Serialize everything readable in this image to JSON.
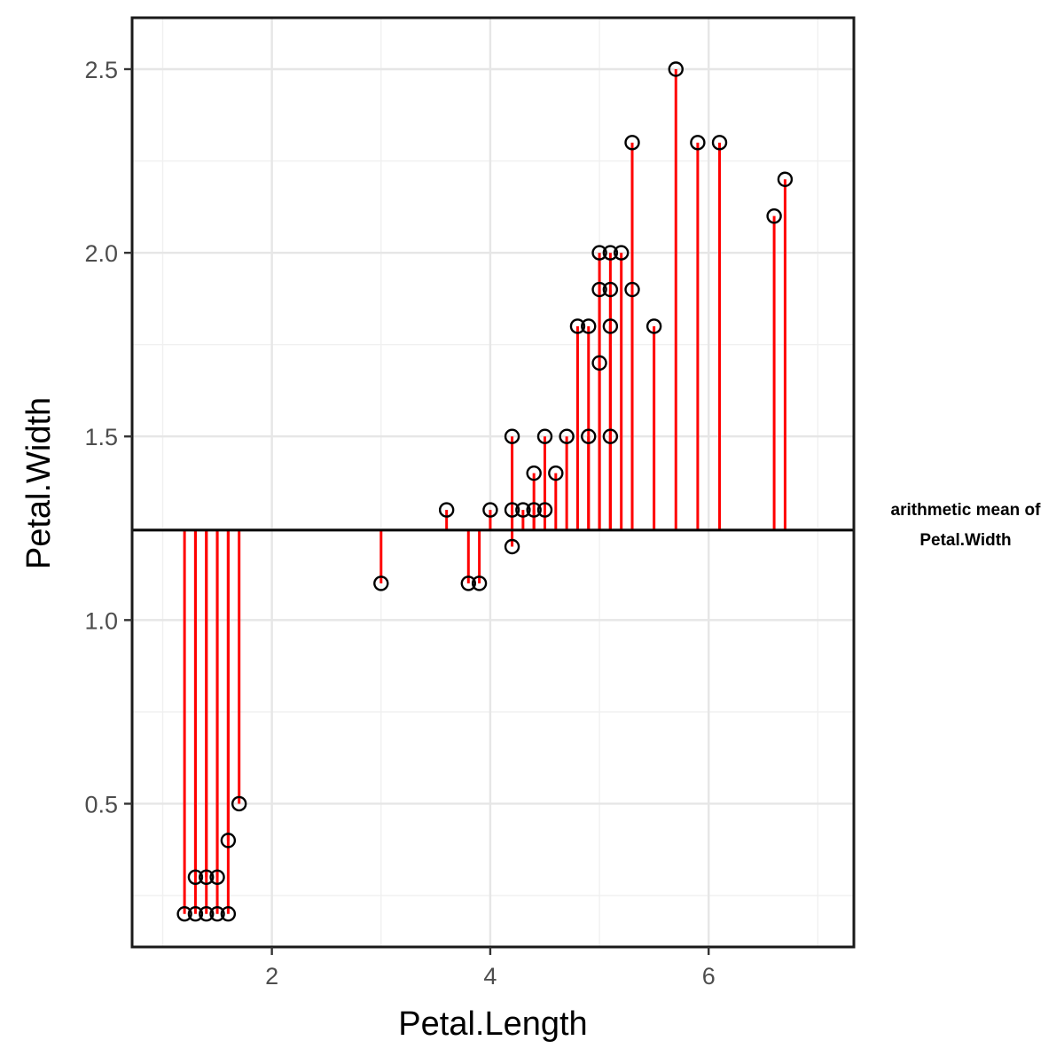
{
  "chart_data": {
    "type": "scatter",
    "xlabel": "Petal.Length",
    "ylabel": "Petal.Width",
    "xlim": [
      0.72,
      7.33
    ],
    "ylim": [
      0.11,
      2.64
    ],
    "x_ticks": [
      2,
      4,
      6
    ],
    "x_tick_labels": [
      "2",
      "4",
      "6"
    ],
    "y_ticks": [
      0.5,
      1.0,
      1.5,
      2.0,
      2.5
    ],
    "y_tick_labels": [
      "0.5",
      "1.0",
      "1.5",
      "2.0",
      "2.5"
    ],
    "grid": true,
    "mean_line": {
      "value": 1.245,
      "label_line1": "arithmetic mean of",
      "label_line2": "Petal.Width"
    },
    "segment_color": "#ff0000",
    "point_color": "#000000",
    "points": [
      [
        1.2,
        0.2
      ],
      [
        1.3,
        0.2
      ],
      [
        1.3,
        0.3
      ],
      [
        1.4,
        0.2
      ],
      [
        1.4,
        0.3
      ],
      [
        1.5,
        0.2
      ],
      [
        1.5,
        0.3
      ],
      [
        1.6,
        0.2
      ],
      [
        1.6,
        0.4
      ],
      [
        1.7,
        0.5
      ],
      [
        3.0,
        1.1
      ],
      [
        3.6,
        1.3
      ],
      [
        3.8,
        1.1
      ],
      [
        3.9,
        1.1
      ],
      [
        4.0,
        1.3
      ],
      [
        4.2,
        1.3
      ],
      [
        4.2,
        1.5
      ],
      [
        4.2,
        1.2
      ],
      [
        4.3,
        1.3
      ],
      [
        4.4,
        1.3
      ],
      [
        4.4,
        1.4
      ],
      [
        4.5,
        1.3
      ],
      [
        4.5,
        1.5
      ],
      [
        4.6,
        1.4
      ],
      [
        4.7,
        1.5
      ],
      [
        4.8,
        1.8
      ],
      [
        4.9,
        1.8
      ],
      [
        4.9,
        1.5
      ],
      [
        5.0,
        2.0
      ],
      [
        5.0,
        1.9
      ],
      [
        5.0,
        1.7
      ],
      [
        5.1,
        2.0
      ],
      [
        5.1,
        1.9
      ],
      [
        5.1,
        1.8
      ],
      [
        5.1,
        1.5
      ],
      [
        5.2,
        2.0
      ],
      [
        5.3,
        2.3
      ],
      [
        5.3,
        1.9
      ],
      [
        5.5,
        1.8
      ],
      [
        5.7,
        2.5
      ],
      [
        5.9,
        2.3
      ],
      [
        6.1,
        2.3
      ],
      [
        6.6,
        2.1
      ],
      [
        6.7,
        2.2
      ]
    ]
  }
}
